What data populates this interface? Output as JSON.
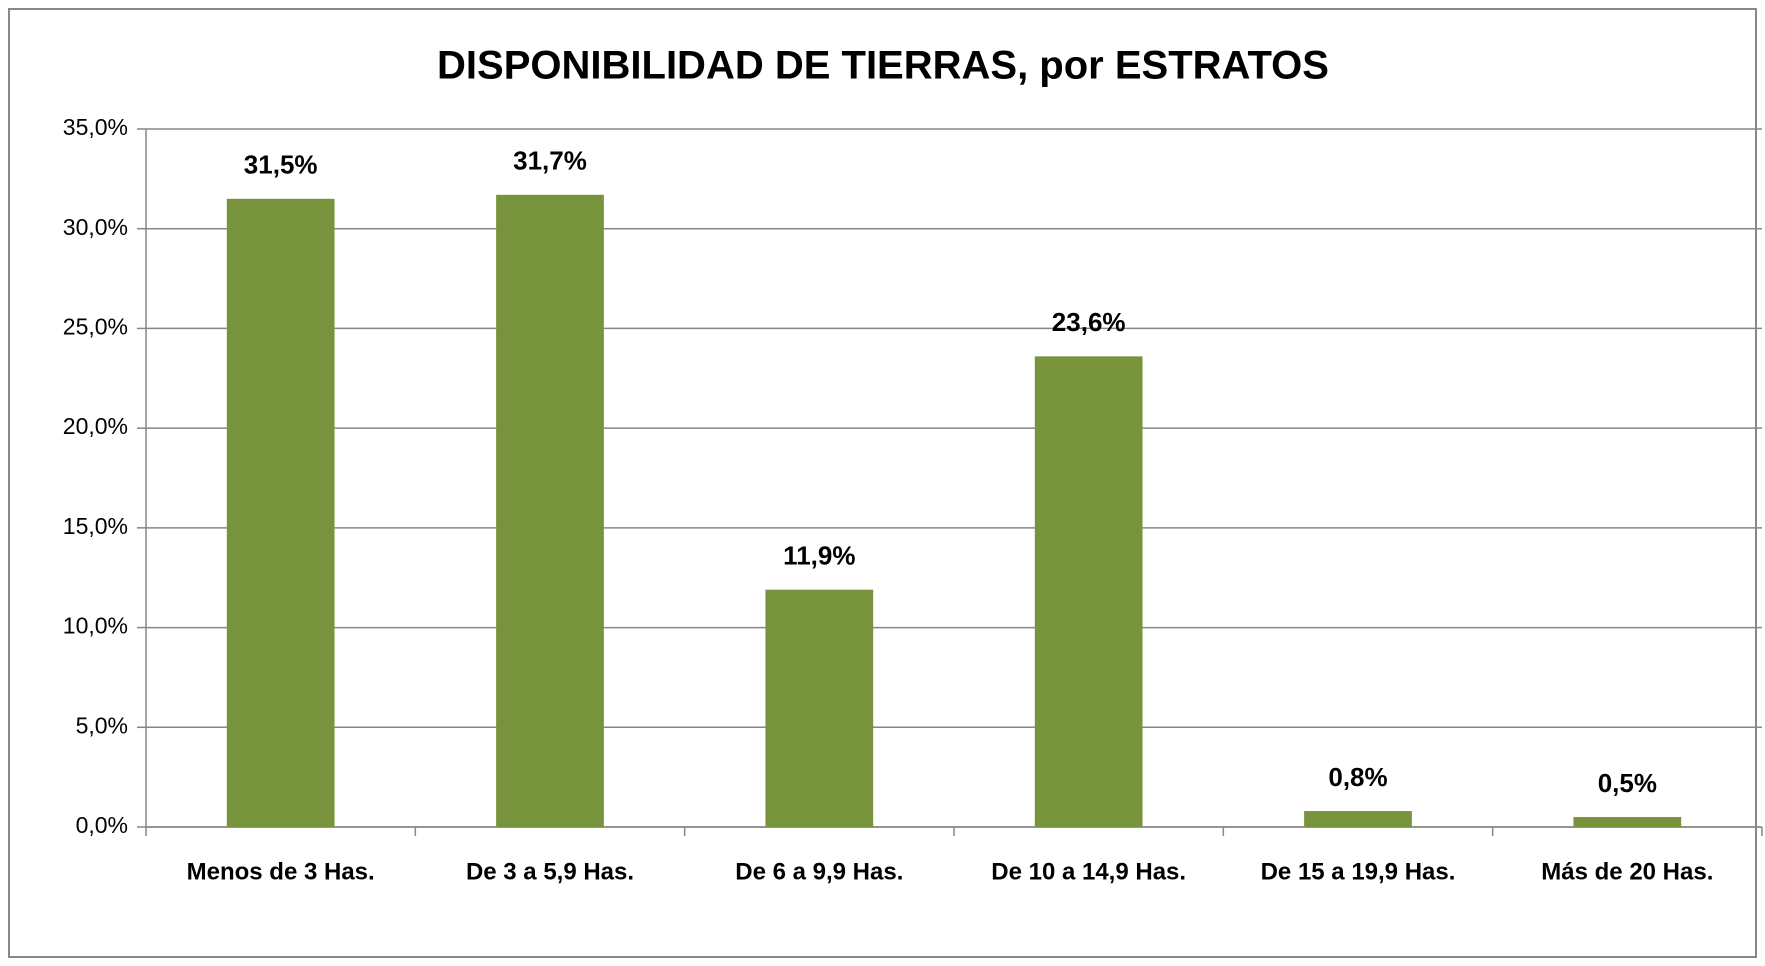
{
  "chart_data": {
    "type": "bar",
    "title": "DISPONIBILIDAD DE TIERRAS, por ESTRATOS",
    "categories": [
      "Menos de 3 Has.",
      "De 3 a 5,9 Has.",
      "De 6 a 9,9 Has.",
      "De 10 a 14,9 Has.",
      "De 15 a 19,9 Has.",
      "Más de 20 Has."
    ],
    "values": [
      31.5,
      31.7,
      11.9,
      23.6,
      0.8,
      0.5
    ],
    "value_labels": [
      "31,5%",
      "31,7%",
      "11,9%",
      "23,6%",
      "0,8%",
      "0,5%"
    ],
    "color": "#77933c",
    "ylim": [
      0,
      35
    ],
    "yticks": [
      {
        "value": 0,
        "label": "0,0%"
      },
      {
        "value": 5,
        "label": "5,0%"
      },
      {
        "value": 10,
        "label": "10,0%"
      },
      {
        "value": 15,
        "label": "15,0%"
      },
      {
        "value": 20,
        "label": "20,0%"
      },
      {
        "value": 25,
        "label": "25,0%"
      },
      {
        "value": 30,
        "label": "30,0%"
      },
      {
        "value": 35,
        "label": "35,0%"
      }
    ],
    "grid": true
  }
}
